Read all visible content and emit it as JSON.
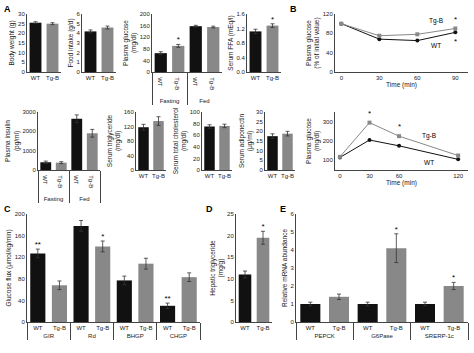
{
  "chart_data": [
    {
      "type": "bar",
      "panel_label": "A",
      "categories": [
        "WT",
        "Tg-B"
      ],
      "values": [
        25.5,
        25.0
      ],
      "errors": [
        0.5,
        0.5
      ],
      "colors": [
        "#111111",
        "#888888"
      ],
      "ylabel": "Body weight (g)",
      "ylim": [
        0,
        30
      ],
      "yticks": [
        0,
        5,
        10,
        15,
        20,
        25,
        30
      ]
    },
    {
      "type": "bar",
      "categories": [
        "WT",
        "Tg-B"
      ],
      "values": [
        4.2,
        4.6
      ],
      "errors": [
        0.15,
        0.15
      ],
      "colors": [
        "#111111",
        "#888888"
      ],
      "ylabel": "Food intake (g/d)",
      "ylim": [
        0,
        6
      ],
      "yticks": [
        0,
        1,
        2,
        3,
        4,
        5,
        6
      ]
    },
    {
      "type": "bar",
      "categories": [
        "Fasting",
        "Fed"
      ],
      "series": [
        {
          "name": "WT",
          "color": "#111111",
          "values": [
            65,
            158
          ],
          "errors": [
            5,
            3
          ]
        },
        {
          "name": "Tg-B",
          "color": "#888888",
          "values": [
            90,
            155
          ],
          "errors": [
            5,
            3
          ]
        }
      ],
      "ylabel": "Plasma glucose\n(mg/dl)",
      "ylim": [
        0,
        200
      ],
      "yticks": [
        0,
        40,
        80,
        120,
        160,
        200
      ],
      "annotations": [
        {
          "text": "*",
          "x": "Fasting",
          "series": "Tg-B"
        }
      ]
    },
    {
      "type": "bar",
      "categories": [
        "WT",
        "Tg-B"
      ],
      "values": [
        1.12,
        1.28
      ],
      "errors": [
        0.06,
        0.05
      ],
      "colors": [
        "#111111",
        "#888888"
      ],
      "ylabel": "Serum FFA (mEq/l)",
      "ylim": [
        0,
        1.6
      ],
      "yticks": [
        {
          "value": 0,
          "label": "0.0"
        },
        0.4,
        0.8,
        1.2,
        1.6
      ],
      "annotations": [
        {
          "text": "*",
          "x": "Tg-B"
        }
      ]
    },
    {
      "type": "bar",
      "categories": [
        "Fasting",
        "Fed"
      ],
      "series": [
        {
          "name": "WT",
          "color": "#111111",
          "values": [
            400,
            2650
          ],
          "errors": [
            60,
            200
          ]
        },
        {
          "name": "Tg-B",
          "color": "#888888",
          "values": [
            380,
            1900
          ],
          "errors": [
            50,
            200
          ]
        }
      ],
      "ylabel": "Plasma insulin\n(pg/ml)",
      "ylim": [
        0,
        3000
      ],
      "yticks": [
        0,
        1000,
        2000,
        3000
      ]
    },
    {
      "type": "bar",
      "categories": [
        "WT",
        "Tg-B"
      ],
      "values": [
        118,
        135
      ],
      "errors": [
        8,
        12
      ],
      "colors": [
        "#111111",
        "#888888"
      ],
      "ylabel": "Serum triglyceride\n(mg/dl)",
      "ylim": [
        0,
        160
      ],
      "yticks": [
        0,
        40,
        80,
        120,
        160
      ]
    },
    {
      "type": "bar",
      "categories": [
        "WT",
        "Tg-B"
      ],
      "values": [
        75,
        76
      ],
      "errors": [
        3,
        3
      ],
      "colors": [
        "#111111",
        "#888888"
      ],
      "ylabel": "Serum total cholesterol\n(mg/dl)",
      "ylim": [
        0,
        100
      ],
      "yticks": [
        0,
        20,
        40,
        60,
        80,
        100
      ]
    },
    {
      "type": "bar",
      "categories": [
        "WT",
        "Tg-B"
      ],
      "values": [
        17.5,
        18.8
      ],
      "errors": [
        1.2,
        1.2
      ],
      "colors": [
        "#111111",
        "#888888"
      ],
      "ylabel": "Serum adiponectin\n(μg/ml)",
      "ylim": [
        0,
        30
      ],
      "yticks": [
        0,
        5,
        10,
        15,
        20,
        25,
        30
      ]
    },
    {
      "type": "line",
      "panel_label": "B",
      "x": [
        0,
        30,
        60,
        90
      ],
      "series": [
        {
          "name": "WT",
          "color": "#111111",
          "marker": "circle",
          "values": [
            100,
            68,
            65,
            82
          ]
        },
        {
          "name": "Tg-B",
          "color": "#888888",
          "marker": "square",
          "values": [
            100,
            75,
            78,
            90
          ]
        }
      ],
      "xlabel": "Time (min)",
      "ylabel": "Plasma glucose\n(% of initial value)",
      "xlim": [
        -5,
        100
      ],
      "xticks": [
        0,
        30,
        60,
        90
      ],
      "ylim": [
        0,
        120
      ],
      "yticks": [
        0,
        40,
        80,
        120
      ],
      "annotations": [
        {
          "text": "*",
          "x": 90,
          "series": "Tg-B"
        },
        {
          "text": "*",
          "x": 90,
          "series": "WT"
        }
      ]
    },
    {
      "type": "line",
      "x": [
        0,
        30,
        60,
        120
      ],
      "series": [
        {
          "name": "WT",
          "color": "#111111",
          "marker": "circle",
          "values": [
            115,
            205,
            175,
            105
          ]
        },
        {
          "name": "Tg-B",
          "color": "#888888",
          "marker": "square",
          "values": [
            118,
            295,
            225,
            125
          ]
        }
      ],
      "xlabel": "Time (min)",
      "ylabel": "Plasma glucose\n(mg/dl)",
      "xlim": [
        -5,
        130
      ],
      "xticks": [
        0,
        30,
        60,
        120
      ],
      "ylim": [
        50,
        350
      ],
      "yticks": [
        100,
        200,
        300
      ],
      "annotations": [
        {
          "text": "*",
          "x": 30,
          "series": "Tg-B"
        },
        {
          "text": "*",
          "x": 60,
          "series": "Tg-B"
        }
      ]
    },
    {
      "type": "bar",
      "panel_label": "C",
      "categories": [
        "GIR",
        "Rd",
        "BHGP",
        "CHGP"
      ],
      "series": [
        {
          "name": "WT",
          "color": "#111111",
          "values": [
            127,
            178,
            77,
            30
          ],
          "errors": [
            8,
            10,
            8,
            5
          ]
        },
        {
          "name": "Tg-B",
          "color": "#888888",
          "values": [
            68,
            140,
            108,
            83
          ],
          "errors": [
            8,
            10,
            10,
            8
          ]
        }
      ],
      "ylabel": "Glucose flux (μmol/kg/min)",
      "ylim": [
        0,
        200
      ],
      "yticks": [
        0,
        40,
        80,
        120,
        160,
        200
      ],
      "annotations": [
        {
          "text": "**",
          "x": "GIR",
          "series": "WT"
        },
        {
          "text": "**",
          "x": "CHGP",
          "series": "WT"
        },
        {
          "text": "*",
          "x": "Rd",
          "series": "Tg-B"
        }
      ]
    },
    {
      "type": "bar",
      "panel_label": "D",
      "categories": [
        "WT",
        "Tg-B"
      ],
      "values": [
        11.0,
        19.5
      ],
      "errors": [
        0.8,
        1.5
      ],
      "colors": [
        "#111111",
        "#888888"
      ],
      "ylabel": "Hepatic triglyceride\n(mg/g)",
      "ylim": [
        0,
        25
      ],
      "yticks": [
        0,
        5,
        10,
        15,
        20,
        25
      ],
      "annotations": [
        {
          "text": "*",
          "x": "Tg-B"
        }
      ]
    },
    {
      "type": "bar",
      "panel_label": "E",
      "categories": [
        "PEPCK",
        "G6Pase",
        "SRERP-1c"
      ],
      "series": [
        {
          "name": "WT",
          "color": "#111111",
          "values": [
            1.0,
            1.0,
            1.0
          ],
          "errors": [
            0.1,
            0.1,
            0.1
          ]
        },
        {
          "name": "Tg-B",
          "color": "#888888",
          "values": [
            1.4,
            4.1,
            2.0
          ],
          "errors": [
            0.15,
            0.8,
            0.2
          ]
        }
      ],
      "ylabel": "Relative mRNA abundance",
      "ylim": [
        0,
        6
      ],
      "yticks": [
        0,
        1,
        2,
        3,
        4,
        5,
        6
      ],
      "annotations": [
        {
          "text": "*",
          "x": "G6Pase",
          "series": "Tg-B"
        },
        {
          "text": "*",
          "x": "SRERP-1c",
          "series": "Tg-B"
        }
      ]
    }
  ]
}
